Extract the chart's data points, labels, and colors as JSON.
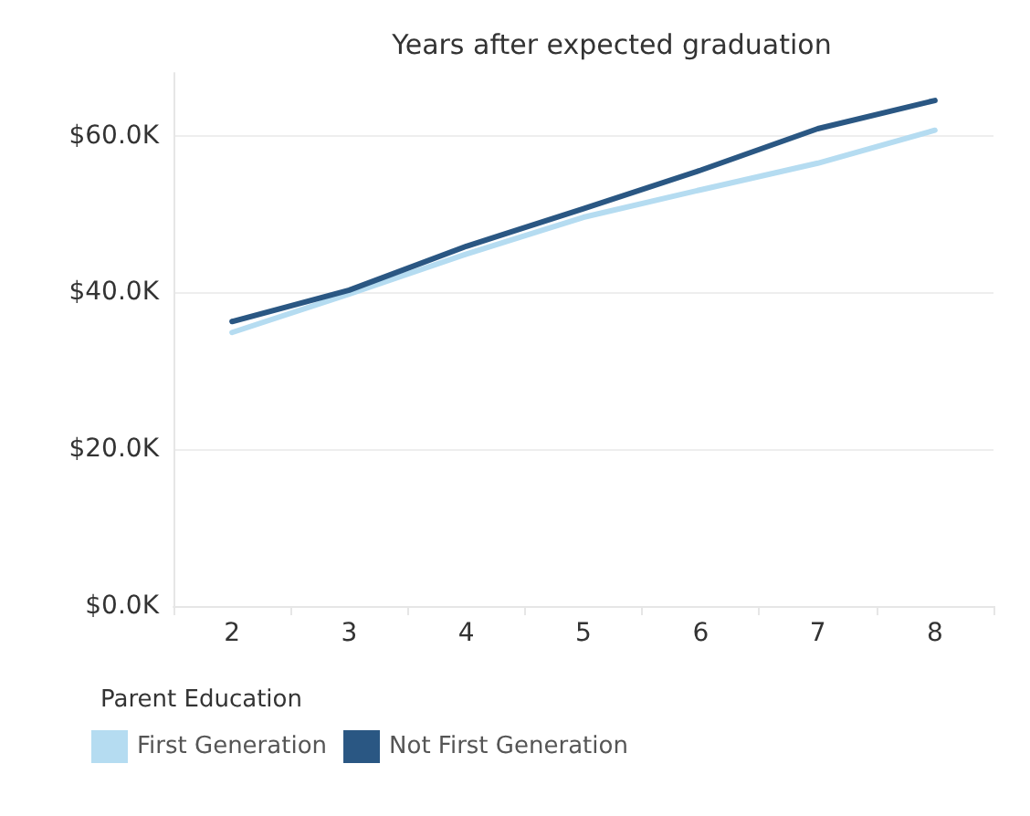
{
  "chart_data": {
    "type": "line",
    "title": "Years after expected graduation",
    "categories": [
      "2",
      "3",
      "4",
      "5",
      "6",
      "7",
      "8"
    ],
    "series": [
      {
        "name": "First Generation",
        "color": "#b5dcf1",
        "values": [
          34900,
          39800,
          44900,
          49600,
          53100,
          56500,
          60700
        ]
      },
      {
        "name": "Not First Generation",
        "color": "#2a5783",
        "values": [
          36300,
          40300,
          45900,
          50700,
          55600,
          60900,
          64500
        ]
      }
    ],
    "ylim": [
      0,
      68000
    ],
    "yticks": [
      {
        "value": 0,
        "label": "$0.0K"
      },
      {
        "value": 20000,
        "label": "$20.0K"
      },
      {
        "value": 40000,
        "label": "$40.0K"
      },
      {
        "value": 60000,
        "label": "$60.0K"
      }
    ],
    "grid": "y",
    "legend": "bottom left",
    "legend_title": "Parent Education",
    "marker": "none",
    "line_style": "solid"
  }
}
